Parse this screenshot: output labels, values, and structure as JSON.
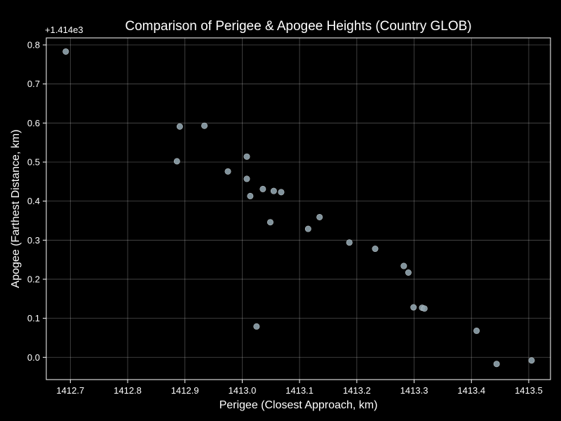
{
  "chart_data": {
    "type": "scatter",
    "title": "Comparison of Perigee & Apogee Heights (Country GLOB)",
    "xlabel": "Perigee (Closest Approach, km)",
    "ylabel": "Apogee (Farthest Distance, km)",
    "y_offset_label": "+1.414e3",
    "y_offset": 1414,
    "xlim": [
      1412.658,
      1413.538
    ],
    "ylim": [
      -0.057,
      0.818
    ],
    "xticks": [
      1412.7,
      1412.8,
      1412.9,
      1413.0,
      1413.1,
      1413.2,
      1413.3,
      1413.4,
      1413.5
    ],
    "xtick_labels": [
      "1412.7",
      "1412.8",
      "1412.9",
      "1413.0",
      "1413.1",
      "1413.2",
      "1413.3",
      "1413.4",
      "1413.5"
    ],
    "yticks": [
      0.0,
      0.1,
      0.2,
      0.3,
      0.4,
      0.5,
      0.6,
      0.7,
      0.8
    ],
    "ytick_labels": [
      "0.0",
      "0.1",
      "0.2",
      "0.3",
      "0.4",
      "0.5",
      "0.6",
      "0.7",
      "0.8"
    ],
    "grid": true,
    "colors": {
      "background": "#000000",
      "point": "#8fa3ad",
      "text": "#ffffff"
    },
    "points": [
      {
        "x": 1412.692,
        "y": 0.783
      },
      {
        "x": 1412.891,
        "y": 0.591
      },
      {
        "x": 1412.934,
        "y": 0.593
      },
      {
        "x": 1412.886,
        "y": 0.502
      },
      {
        "x": 1412.975,
        "y": 0.476
      },
      {
        "x": 1413.008,
        "y": 0.514
      },
      {
        "x": 1413.008,
        "y": 0.457
      },
      {
        "x": 1413.014,
        "y": 0.413
      },
      {
        "x": 1413.036,
        "y": 0.431
      },
      {
        "x": 1413.055,
        "y": 0.426
      },
      {
        "x": 1413.068,
        "y": 0.423
      },
      {
        "x": 1413.049,
        "y": 0.346
      },
      {
        "x": 1413.115,
        "y": 0.329
      },
      {
        "x": 1413.135,
        "y": 0.359
      },
      {
        "x": 1413.187,
        "y": 0.294
      },
      {
        "x": 1413.232,
        "y": 0.278
      },
      {
        "x": 1413.282,
        "y": 0.234
      },
      {
        "x": 1413.29,
        "y": 0.217
      },
      {
        "x": 1413.299,
        "y": 0.128
      },
      {
        "x": 1413.314,
        "y": 0.127
      },
      {
        "x": 1413.318,
        "y": 0.125
      },
      {
        "x": 1413.025,
        "y": 0.079
      },
      {
        "x": 1413.409,
        "y": 0.068
      },
      {
        "x": 1413.444,
        "y": -0.017
      },
      {
        "x": 1413.505,
        "y": -0.008
      }
    ]
  }
}
